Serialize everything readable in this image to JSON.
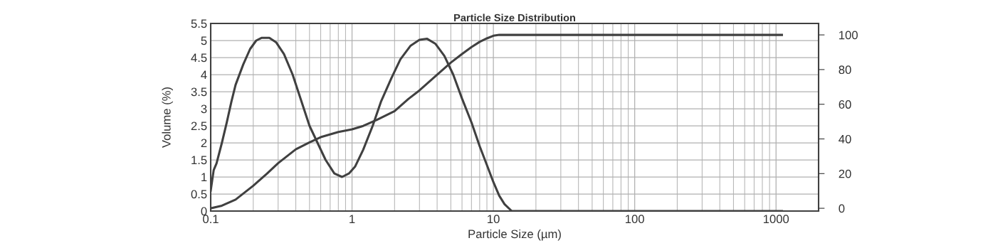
{
  "chart_data": {
    "type": "line",
    "title": "Particle Size Distribution",
    "xlabel": "Particle Size (µm)",
    "ylabel": "Volume (%)",
    "log": "x",
    "grid": true,
    "marker": "none",
    "line_style": "solid",
    "xlim": [
      0.1,
      2000
    ],
    "xticks": [
      0.1,
      1,
      10,
      100,
      1000
    ],
    "ylim": [
      0,
      5.5
    ],
    "yticks": [
      0,
      0.5,
      1,
      1.5,
      2,
      2.5,
      3,
      3.5,
      4,
      4.5,
      5,
      5.5
    ],
    "y2lim": [
      -1.6,
      106.6
    ],
    "y2ticks": [
      0,
      20,
      40,
      60,
      80,
      100
    ],
    "series": [
      {
        "color": "#404040",
        "x": [
          0.1,
          0.105,
          0.11,
          0.12,
          0.13,
          0.14,
          0.15,
          0.17,
          0.19,
          0.21,
          0.23,
          0.26,
          0.29,
          0.33,
          0.38,
          0.44,
          0.5,
          0.57,
          0.65,
          0.75,
          0.85,
          0.95,
          1.05,
          1.2,
          1.4,
          1.6,
          1.9,
          2.2,
          2.6,
          3.0,
          3.4,
          3.9,
          4.5,
          5.2,
          6.0,
          7.0,
          8.0,
          9.0,
          10,
          11,
          12,
          13.5,
          1100
        ],
        "values": [
          0.6,
          1.2,
          1.4,
          2.0,
          2.6,
          3.2,
          3.7,
          4.3,
          4.75,
          5.0,
          5.08,
          5.08,
          4.95,
          4.6,
          4.0,
          3.2,
          2.5,
          2.0,
          1.5,
          1.1,
          1.0,
          1.1,
          1.3,
          1.8,
          2.5,
          3.2,
          3.9,
          4.45,
          4.85,
          5.02,
          5.05,
          4.9,
          4.55,
          4.0,
          3.3,
          2.6,
          1.9,
          1.35,
          0.85,
          0.45,
          0.2,
          0.0,
          0.0
        ]
      },
      {
        "color": "#404040",
        "axis": "y2",
        "x": [
          0.1,
          0.12,
          0.15,
          0.2,
          0.25,
          0.3,
          0.4,
          0.5,
          0.6,
          0.8,
          1.0,
          1.2,
          1.5,
          2,
          2.5,
          3,
          4,
          5,
          6,
          7,
          8,
          9,
          10,
          11,
          1100
        ],
        "values": [
          0,
          1.5,
          5,
          13,
          20,
          26,
          34,
          38,
          41,
          44,
          45.5,
          47.5,
          51,
          56,
          63,
          68,
          77,
          84,
          89,
          93,
          96,
          98,
          99.5,
          100,
          100
        ]
      }
    ]
  }
}
